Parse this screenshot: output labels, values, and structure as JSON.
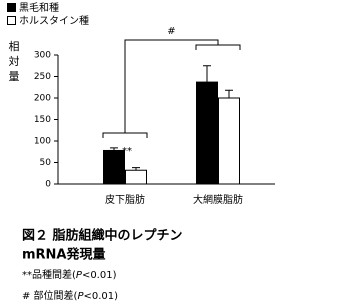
{
  "chart_data": {
    "type": "bar",
    "categories": [
      "皮下脂肪",
      "大網膜脂肪"
    ],
    "series": [
      {
        "name": "黒毛和種",
        "color": "#000000",
        "values": [
          78,
          237
        ],
        "errors": [
          6,
          38
        ]
      },
      {
        "name": "ホルスタイン種",
        "color": "#ffffff",
        "values": [
          32,
          200
        ],
        "errors": [
          6,
          18
        ]
      }
    ],
    "y_label": "相対量",
    "ylim": [
      0,
      300
    ],
    "yticks": [
      0,
      50,
      100,
      150,
      200,
      250,
      300
    ],
    "annotations": [
      "**",
      "#"
    ],
    "caption": [
      "図２ 脂肪組織中のレプチン",
      "mRNA発現量"
    ],
    "notes": [
      [
        "**品種間差(",
        "P",
        "<0.01)"
      ],
      [
        "# 部位間差(",
        "P",
        "<0.01)"
      ]
    ]
  }
}
